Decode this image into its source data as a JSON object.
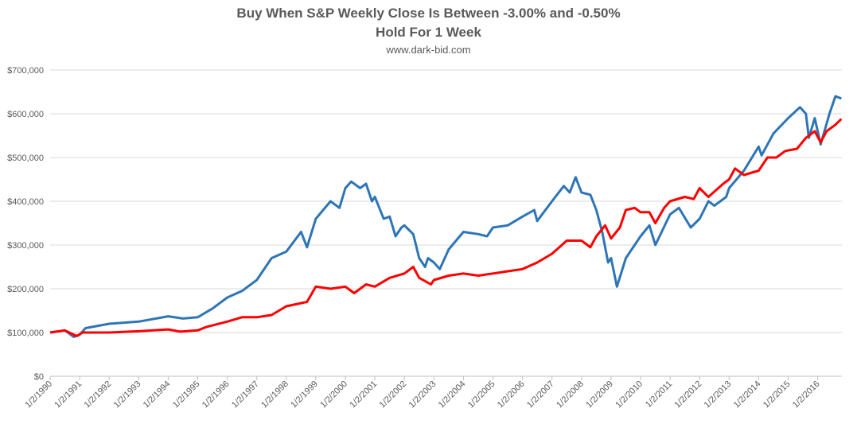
{
  "chart_data": {
    "type": "line",
    "title": "Buy When S&P Weekly Close Is Between -3.00% and -0.50%",
    "title_line2": "Hold For 1 Week",
    "subtitle": "www.dark-bid.com",
    "xlabel": "",
    "ylabel": "",
    "ylim": [
      0,
      700000
    ],
    "xlim": [
      1990.0,
      2016.8
    ],
    "grid": true,
    "legend": "none",
    "y_ticks": [
      "$0",
      "$100,000",
      "$200,000",
      "$300,000",
      "$400,000",
      "$500,000",
      "$600,000",
      "$700,000"
    ],
    "x_ticks": [
      "1/2/1990",
      "1/2/1991",
      "1/2/1992",
      "1/2/1993",
      "1/2/1994",
      "1/2/1995",
      "1/2/1996",
      "1/2/1997",
      "1/2/1998",
      "1/2/1999",
      "1/2/2000",
      "1/2/2001",
      "1/2/2002",
      "1/2/2003",
      "1/2/2004",
      "1/2/2005",
      "1/2/2006",
      "1/2/2007",
      "1/2/2008",
      "1/2/2009",
      "1/2/2010",
      "1/2/2011",
      "1/2/2012",
      "1/2/2013",
      "1/2/2014",
      "1/2/2015",
      "1/2/2016"
    ],
    "series": [
      {
        "color": "#2e75b6",
        "points": [
          [
            1990.0,
            100
          ],
          [
            1990.5,
            105
          ],
          [
            1990.8,
            90
          ],
          [
            1991.0,
            95
          ],
          [
            1991.2,
            110
          ],
          [
            1992.0,
            120
          ],
          [
            1993.0,
            125
          ],
          [
            1994.0,
            137
          ],
          [
            1994.5,
            132
          ],
          [
            1995.0,
            135
          ],
          [
            1995.5,
            155
          ],
          [
            1996.0,
            180
          ],
          [
            1996.5,
            195
          ],
          [
            1997.0,
            220
          ],
          [
            1997.5,
            270
          ],
          [
            1998.0,
            285
          ],
          [
            1998.5,
            330
          ],
          [
            1998.7,
            295
          ],
          [
            1999.0,
            360
          ],
          [
            1999.5,
            400
          ],
          [
            1999.8,
            385
          ],
          [
            2000.0,
            430
          ],
          [
            2000.2,
            445
          ],
          [
            2000.5,
            430
          ],
          [
            2000.7,
            440
          ],
          [
            2000.9,
            400
          ],
          [
            2001.0,
            410
          ],
          [
            2001.3,
            360
          ],
          [
            2001.5,
            365
          ],
          [
            2001.7,
            320
          ],
          [
            2001.9,
            340
          ],
          [
            2002.0,
            345
          ],
          [
            2002.3,
            325
          ],
          [
            2002.5,
            270
          ],
          [
            2002.7,
            250
          ],
          [
            2002.8,
            270
          ],
          [
            2003.0,
            260
          ],
          [
            2003.2,
            245
          ],
          [
            2003.5,
            290
          ],
          [
            2004.0,
            330
          ],
          [
            2004.5,
            325
          ],
          [
            2004.8,
            320
          ],
          [
            2005.0,
            340
          ],
          [
            2005.5,
            345
          ],
          [
            2006.0,
            365
          ],
          [
            2006.4,
            380
          ],
          [
            2006.5,
            355
          ],
          [
            2007.0,
            400
          ],
          [
            2007.4,
            435
          ],
          [
            2007.6,
            420
          ],
          [
            2007.8,
            455
          ],
          [
            2008.0,
            420
          ],
          [
            2008.3,
            415
          ],
          [
            2008.5,
            380
          ],
          [
            2008.7,
            330
          ],
          [
            2008.9,
            260
          ],
          [
            2009.0,
            270
          ],
          [
            2009.2,
            205
          ],
          [
            2009.5,
            270
          ],
          [
            2010.0,
            320
          ],
          [
            2010.3,
            345
          ],
          [
            2010.5,
            300
          ],
          [
            2011.0,
            370
          ],
          [
            2011.3,
            385
          ],
          [
            2011.7,
            340
          ],
          [
            2012.0,
            360
          ],
          [
            2012.3,
            400
          ],
          [
            2012.5,
            390
          ],
          [
            2012.9,
            410
          ],
          [
            2013.0,
            430
          ],
          [
            2013.5,
            470
          ],
          [
            2014.0,
            525
          ],
          [
            2014.1,
            505
          ],
          [
            2014.5,
            555
          ],
          [
            2015.0,
            590
          ],
          [
            2015.4,
            615
          ],
          [
            2015.6,
            600
          ],
          [
            2015.7,
            545
          ],
          [
            2015.9,
            590
          ],
          [
            2016.1,
            530
          ],
          [
            2016.4,
            600
          ],
          [
            2016.6,
            640
          ],
          [
            2016.8,
            635
          ]
        ]
      },
      {
        "color": "#ff0000",
        "points": [
          [
            1990.0,
            100
          ],
          [
            1990.5,
            105
          ],
          [
            1990.9,
            92
          ],
          [
            1991.1,
            100
          ],
          [
            1992.0,
            100
          ],
          [
            1993.0,
            103
          ],
          [
            1994.0,
            107
          ],
          [
            1994.4,
            102
          ],
          [
            1995.0,
            105
          ],
          [
            1995.3,
            113
          ],
          [
            1996.0,
            125
          ],
          [
            1996.5,
            135
          ],
          [
            1997.0,
            135
          ],
          [
            1997.5,
            140
          ],
          [
            1998.0,
            160
          ],
          [
            1998.7,
            170
          ],
          [
            1999.0,
            205
          ],
          [
            1999.5,
            200
          ],
          [
            2000.0,
            205
          ],
          [
            2000.3,
            190
          ],
          [
            2000.7,
            210
          ],
          [
            2001.0,
            205
          ],
          [
            2001.5,
            225
          ],
          [
            2002.0,
            235
          ],
          [
            2002.3,
            250
          ],
          [
            2002.5,
            225
          ],
          [
            2002.9,
            210
          ],
          [
            2003.0,
            220
          ],
          [
            2003.5,
            230
          ],
          [
            2004.0,
            235
          ],
          [
            2004.5,
            230
          ],
          [
            2005.0,
            235
          ],
          [
            2005.5,
            240
          ],
          [
            2006.0,
            245
          ],
          [
            2006.5,
            260
          ],
          [
            2007.0,
            280
          ],
          [
            2007.5,
            310
          ],
          [
            2008.0,
            310
          ],
          [
            2008.3,
            295
          ],
          [
            2008.5,
            320
          ],
          [
            2008.8,
            345
          ],
          [
            2009.0,
            315
          ],
          [
            2009.3,
            340
          ],
          [
            2009.5,
            380
          ],
          [
            2009.8,
            385
          ],
          [
            2010.0,
            375
          ],
          [
            2010.3,
            375
          ],
          [
            2010.5,
            350
          ],
          [
            2010.8,
            385
          ],
          [
            2011.0,
            400
          ],
          [
            2011.5,
            410
          ],
          [
            2011.8,
            405
          ],
          [
            2012.0,
            430
          ],
          [
            2012.3,
            410
          ],
          [
            2012.8,
            440
          ],
          [
            2013.0,
            450
          ],
          [
            2013.2,
            475
          ],
          [
            2013.5,
            460
          ],
          [
            2014.0,
            470
          ],
          [
            2014.3,
            500
          ],
          [
            2014.6,
            500
          ],
          [
            2014.9,
            515
          ],
          [
            2015.3,
            520
          ],
          [
            2015.6,
            545
          ],
          [
            2015.9,
            560
          ],
          [
            2016.1,
            535
          ],
          [
            2016.3,
            560
          ],
          [
            2016.6,
            575
          ],
          [
            2016.8,
            588
          ]
        ]
      }
    ]
  }
}
